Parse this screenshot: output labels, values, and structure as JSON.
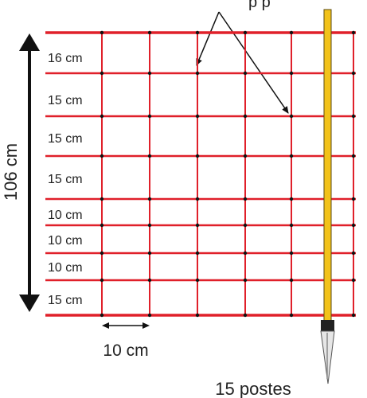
{
  "colors": {
    "wire": "#e0202a",
    "knot": "#111111",
    "post": "#f2c21a",
    "post_outline": "#5a4a10",
    "text": "#222222",
    "arrow": "#111111"
  },
  "top_caption_partial": "p p",
  "height_total": "106 cm",
  "spacings": [
    "16 cm",
    "15 cm",
    "15 cm",
    "15 cm",
    "10 cm",
    "10 cm",
    "10 cm",
    "15 cm"
  ],
  "vertical_spacing": "10 cm",
  "posts_label": "15 postes",
  "icons": {
    "height_arrow": "double-arrow-vertical-icon",
    "width_arrow": "double-arrow-horizontal-icon",
    "post": "fence-post-icon"
  }
}
